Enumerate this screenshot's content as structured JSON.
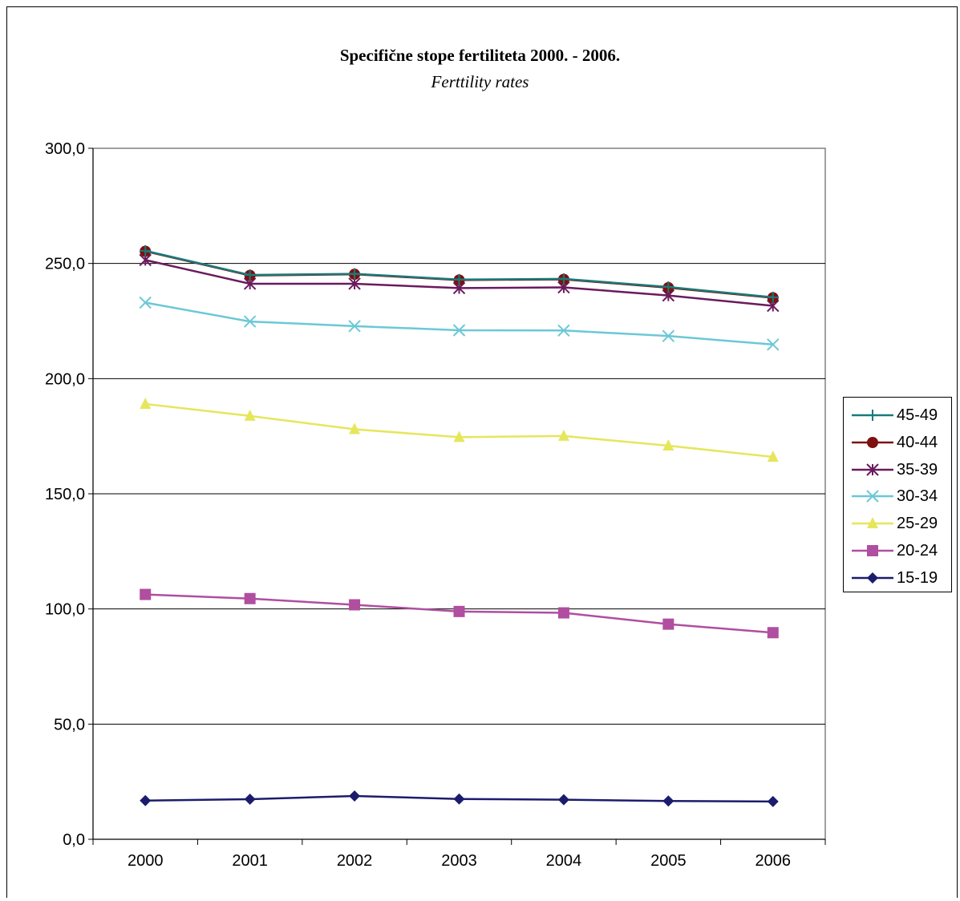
{
  "chart_data": {
    "type": "line",
    "title": "Specifične stope fertiliteta 2000. - 2006.",
    "subtitle": "Ferttility rates",
    "categories": [
      "2000",
      "2001",
      "2002",
      "2003",
      "2004",
      "2005",
      "2006"
    ],
    "ylim": [
      0,
      300
    ],
    "yticks": [
      "0,0",
      "50,0",
      "100,0",
      "150,0",
      "200,0",
      "250,0",
      "300,0"
    ],
    "grid": true,
    "legend_position": "right",
    "series": [
      {
        "name": "45-49",
        "values": [
          255.5,
          245.0,
          245.5,
          243.0,
          243.3,
          239.8,
          235.3
        ],
        "color": "#1a7a7a",
        "marker": "plus"
      },
      {
        "name": "40-44",
        "values": [
          255.3,
          244.8,
          245.3,
          242.8,
          243.1,
          239.5,
          235.1
        ],
        "color": "#7f1010",
        "marker": "circle"
      },
      {
        "name": "35-39",
        "values": [
          251.5,
          241.2,
          241.2,
          239.3,
          239.6,
          236.1,
          231.6
        ],
        "color": "#6b1a5e",
        "marker": "asterisk"
      },
      {
        "name": "30-34",
        "values": [
          233.0,
          224.8,
          222.8,
          221.0,
          220.9,
          218.5,
          214.8
        ],
        "color": "#6cc8d6",
        "marker": "cross"
      },
      {
        "name": "25-29",
        "values": [
          189.0,
          183.8,
          178.0,
          174.6,
          175.1,
          170.9,
          166.0
        ],
        "color": "#e6e65c",
        "marker": "triangle"
      },
      {
        "name": "20-24",
        "values": [
          106.3,
          104.5,
          101.8,
          98.9,
          98.3,
          93.4,
          89.7
        ],
        "color": "#b04ea0",
        "marker": "square"
      },
      {
        "name": "15-19",
        "values": [
          16.8,
          17.4,
          18.8,
          17.5,
          17.2,
          16.6,
          16.4
        ],
        "color": "#1c1c6e",
        "marker": "diamond"
      }
    ]
  }
}
